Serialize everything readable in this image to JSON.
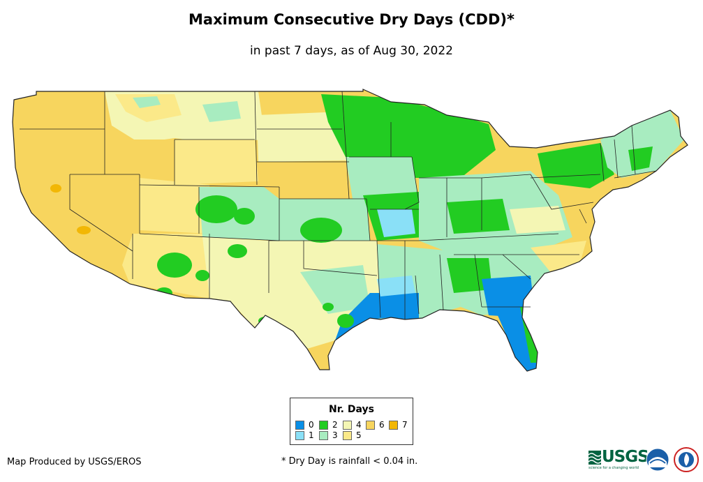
{
  "title": "Maximum Consecutive Dry Days (CDD)*",
  "subtitle": "in past 7 days, as of Aug 30, 2022",
  "legend": {
    "title": "Nr. Days",
    "items": [
      {
        "label": "0",
        "color": "#0a8fe6"
      },
      {
        "label": "1",
        "color": "#8ae0f7"
      },
      {
        "label": "2",
        "color": "#22cc22"
      },
      {
        "label": "3",
        "color": "#a8ecc0"
      },
      {
        "label": "4",
        "color": "#f4f6b4"
      },
      {
        "label": "5",
        "color": "#fbe989"
      },
      {
        "label": "6",
        "color": "#f7d55e"
      },
      {
        "label": "7",
        "color": "#f2b705"
      }
    ]
  },
  "credit": "Map Produced by USGS/EROS",
  "footnote": "* Dry Day is rainfall < 0.04 in.",
  "logos": {
    "usgs": "USGS",
    "usgs_tagline": "science for a changing world"
  }
}
